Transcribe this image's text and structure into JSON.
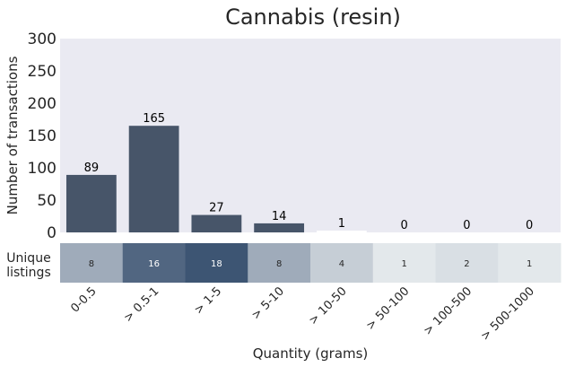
{
  "chart_data": {
    "type": "bar",
    "title": "Cannabis (resin)",
    "ylabel": "Number of transactions",
    "xlabel": "Quantity (grams)",
    "ylim": [
      0,
      300
    ],
    "yticks": [
      "0",
      "50",
      "100",
      "150",
      "200",
      "250",
      "300"
    ],
    "categories": [
      "0-0.5",
      "> 0.5-1",
      "> 1-5",
      "> 5-10",
      "> 10-50",
      "> 50-100",
      "> 100-500",
      "> 500-1000"
    ],
    "values": [
      89,
      165,
      27,
      14,
      1,
      0,
      0,
      0
    ],
    "bar_labels": [
      "89",
      "165",
      "27",
      "14",
      "1",
      "0",
      "0",
      "0"
    ],
    "bar_color": "#475569",
    "background_color": "#eaeaf2",
    "grid": false,
    "heatmap": {
      "label": "Unique\nlistings",
      "values": [
        8,
        16,
        18,
        8,
        4,
        1,
        2,
        1
      ],
      "value_labels": [
        "8",
        "16",
        "18",
        "8",
        "4",
        "1",
        "2",
        "1"
      ],
      "color_low": "#e3e8eb",
      "color_high": "#3d5573"
    }
  }
}
